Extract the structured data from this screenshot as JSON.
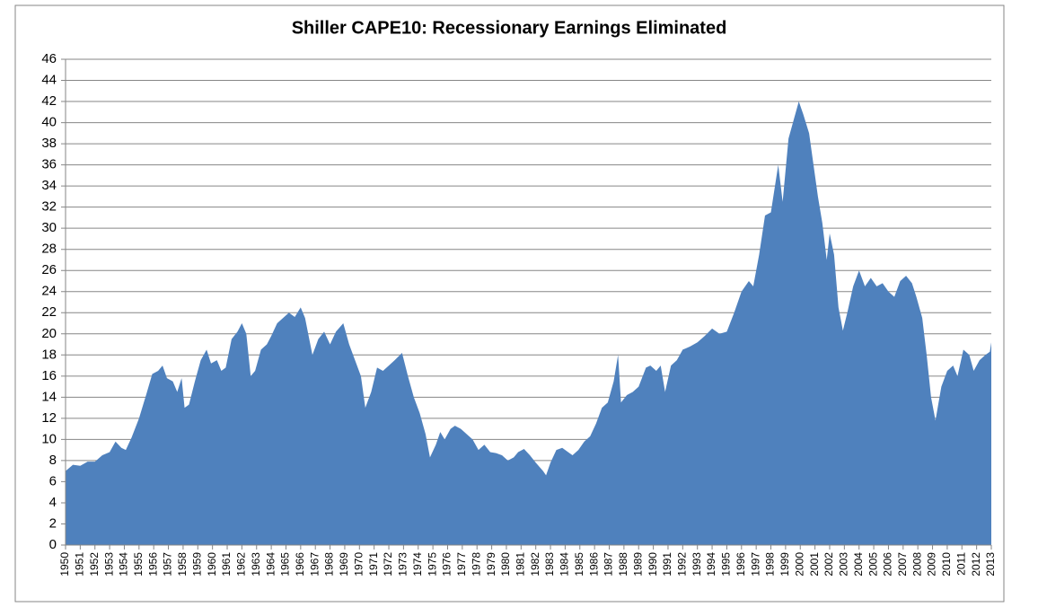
{
  "chart_data": {
    "type": "area",
    "title": "Shiller CAPE10: Recessionary Earnings Eliminated",
    "color": "#4f81bd",
    "grid": true,
    "xlim": [
      1950,
      2013
    ],
    "ylim": [
      0,
      46
    ],
    "yticks": [
      0,
      2,
      4,
      6,
      8,
      10,
      12,
      14,
      16,
      18,
      20,
      22,
      24,
      26,
      28,
      30,
      32,
      34,
      36,
      38,
      40,
      42,
      44,
      46
    ],
    "xticks": [
      1950,
      1951,
      1952,
      1953,
      1954,
      1955,
      1956,
      1957,
      1958,
      1959,
      1960,
      1961,
      1962,
      1963,
      1964,
      1965,
      1966,
      1967,
      1968,
      1969,
      1970,
      1971,
      1972,
      1973,
      1974,
      1975,
      1976,
      1977,
      1978,
      1979,
      1980,
      1981,
      1982,
      1983,
      1984,
      1985,
      1986,
      1987,
      1988,
      1989,
      1990,
      1991,
      1992,
      1993,
      1994,
      1995,
      1996,
      1997,
      1998,
      1999,
      2000,
      2001,
      2002,
      2003,
      2004,
      2005,
      2006,
      2007,
      2008,
      2009,
      2010,
      2011,
      2012,
      2013
    ],
    "x": [
      1950.0,
      1950.5,
      1951,
      1951.5,
      1952,
      1952.5,
      1953,
      1953.4,
      1953.8,
      1954.1,
      1954.5,
      1955,
      1955.5,
      1955.9,
      1956.3,
      1956.6,
      1956.9,
      1957.3,
      1957.6,
      1957.9,
      1958.1,
      1958.4,
      1958.8,
      1959.2,
      1959.6,
      1959.9,
      1960.3,
      1960.6,
      1960.9,
      1961.3,
      1961.7,
      1962.0,
      1962.3,
      1962.6,
      1962.9,
      1963.3,
      1963.7,
      1964.0,
      1964.4,
      1964.8,
      1965.2,
      1965.6,
      1966.0,
      1966.3,
      1966.8,
      1967.2,
      1967.6,
      1968.0,
      1968.4,
      1968.9,
      1969.3,
      1969.7,
      1970.1,
      1970.4,
      1970.8,
      1971.2,
      1971.6,
      1972.0,
      1972.4,
      1972.9,
      1973.3,
      1973.7,
      1974.1,
      1974.5,
      1974.8,
      1975.2,
      1975.5,
      1975.8,
      1976.2,
      1976.5,
      1976.9,
      1977.3,
      1977.7,
      1978.1,
      1978.5,
      1978.9,
      1979.3,
      1979.7,
      1980.1,
      1980.5,
      1980.8,
      1981.2,
      1981.6,
      1982.0,
      1982.5,
      1982.7,
      1983.0,
      1983.4,
      1983.8,
      1984.2,
      1984.5,
      1984.9,
      1985.3,
      1985.7,
      1986.1,
      1986.5,
      1986.9,
      1987.3,
      1987.6,
      1987.8,
      1988.2,
      1988.6,
      1989.0,
      1989.5,
      1989.8,
      1990.2,
      1990.5,
      1990.8,
      1991.2,
      1991.6,
      1992.0,
      1992.5,
      1993.0,
      1993.5,
      1994.0,
      1994.5,
      1995.0,
      1995.5,
      1996.0,
      1996.5,
      1996.8,
      1997.2,
      1997.6,
      1998.0,
      1998.5,
      1998.8,
      1999.2,
      1999.6,
      1999.9,
      2000.2,
      2000.6,
      2000.9,
      2001.2,
      2001.5,
      2001.8,
      2002.0,
      2002.3,
      2002.6,
      2002.9,
      2003.2,
      2003.6,
      2004.0,
      2004.4,
      2004.8,
      2005.2,
      2005.6,
      2006.0,
      2006.4,
      2006.8,
      2007.2,
      2007.6,
      2007.9,
      2008.3,
      2008.6,
      2008.9,
      2009.2,
      2009.6,
      2010.0,
      2010.4,
      2010.7,
      2011.1,
      2011.5,
      2011.8,
      2012.2,
      2012.6,
      2012.9,
      2013.0
    ],
    "values": [
      7.0,
      7.6,
      7.5,
      7.9,
      7.9,
      8.5,
      8.8,
      9.8,
      9.2,
      9.0,
      10.2,
      12,
      14.3,
      16.2,
      16.5,
      17.0,
      15.8,
      15.5,
      14.5,
      15.8,
      13.0,
      13.3,
      15.5,
      17.5,
      18.5,
      17.2,
      17.5,
      16.5,
      16.8,
      19.5,
      20.2,
      21.0,
      20.0,
      16.0,
      16.5,
      18.5,
      19.0,
      19.8,
      21.0,
      21.5,
      22.0,
      21.6,
      22.5,
      21.5,
      18.0,
      19.5,
      20.2,
      19.0,
      20.2,
      21.0,
      19.0,
      17.5,
      16.0,
      13.0,
      14.5,
      16.8,
      16.5,
      17.0,
      17.5,
      18.2,
      16.0,
      14.0,
      12.5,
      10.5,
      8.3,
      9.5,
      10.7,
      10.0,
      11.0,
      11.3,
      11.0,
      10.5,
      10.0,
      9.0,
      9.5,
      8.8,
      8.7,
      8.5,
      8.0,
      8.3,
      8.8,
      9.1,
      8.5,
      7.8,
      7.0,
      6.6,
      7.8,
      9.0,
      9.2,
      8.8,
      8.5,
      9.0,
      9.8,
      10.3,
      11.5,
      13.0,
      13.5,
      15.5,
      18.0,
      13.5,
      14.2,
      14.5,
      15.0,
      16.8,
      17.0,
      16.5,
      17.0,
      14.5,
      17.0,
      17.5,
      18.5,
      18.8,
      19.2,
      19.8,
      20.5,
      20.0,
      20.2,
      22.0,
      24.0,
      25.0,
      24.5,
      27.5,
      31.2,
      31.5,
      36.0,
      32.5,
      38.5,
      40.5,
      42.0,
      40.8,
      39.0,
      36.0,
      33.0,
      30.5,
      27.0,
      29.5,
      27.5,
      22.5,
      20.3,
      22.0,
      24.5,
      26.0,
      24.5,
      25.3,
      24.5,
      24.8,
      24.0,
      23.5,
      25.0,
      25.5,
      24.8,
      23.5,
      21.5,
      18.0,
      14.0,
      11.8,
      15.0,
      16.5,
      17.0,
      16.0,
      18.5,
      18.0,
      16.5,
      17.5,
      18.0,
      18.3,
      19.2
    ]
  }
}
